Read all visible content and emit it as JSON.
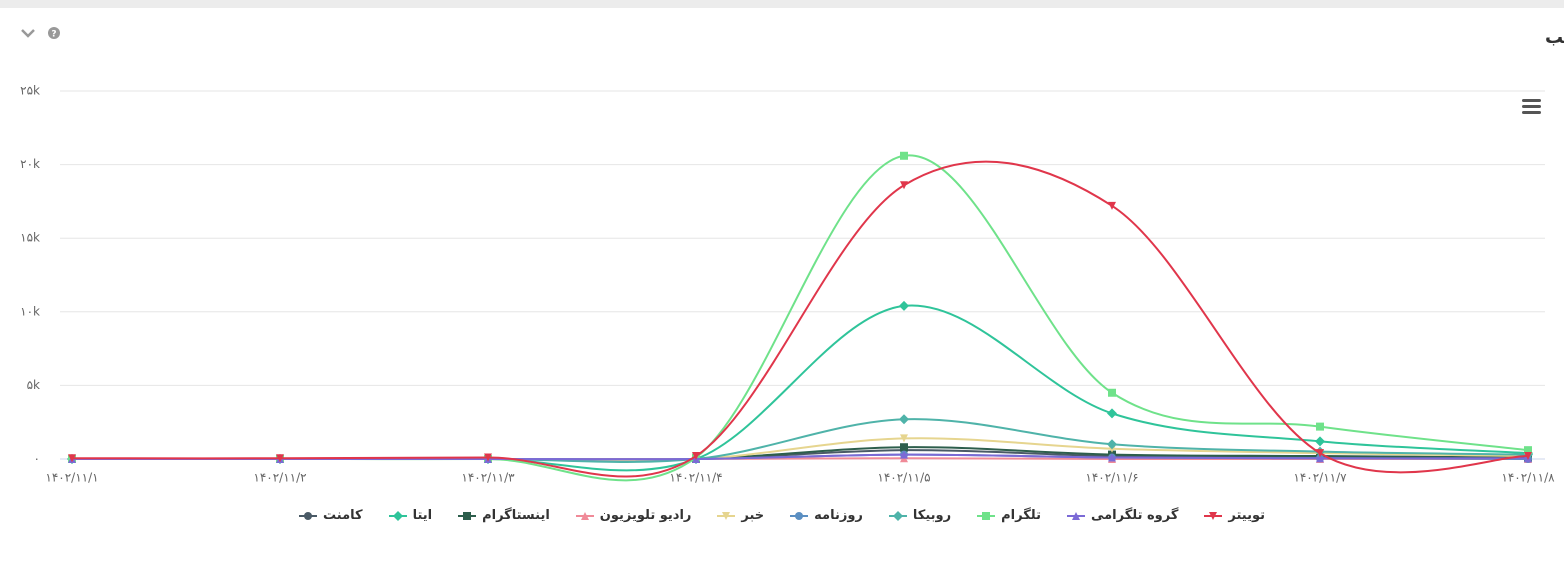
{
  "chart_data": {
    "type": "line",
    "title": "نمودار فراوانی تعداد مطالب",
    "categories": [
      "۱۴۰۲/۱۱/۱",
      "۱۴۰۲/۱۱/۲",
      "۱۴۰۲/۱۱/۳",
      "۱۴۰۲/۱۱/۴",
      "۱۴۰۲/۱۱/۵",
      "۱۴۰۲/۱۱/۶",
      "۱۴۰۲/۱۱/۷",
      "۱۴۰۲/۱۱/۸"
    ],
    "ylim": [
      0,
      25000
    ],
    "yticks": [
      {
        "value": 0,
        "label": "۰"
      },
      {
        "value": 5000,
        "label": "۵k"
      },
      {
        "value": 10000,
        "label": "۱۰k"
      },
      {
        "value": 15000,
        "label": "۱۵k"
      },
      {
        "value": 20000,
        "label": "۲۰k"
      },
      {
        "value": 25000,
        "label": "۲۵k"
      }
    ],
    "grid": true,
    "series": [
      {
        "name": "توییتر",
        "color": "#e0364b",
        "marker": "triangle-down",
        "values": [
          50,
          50,
          100,
          200,
          18600,
          17200,
          400,
          200
        ]
      },
      {
        "name": "گروه تلگرامی",
        "color": "#7b6ad6",
        "marker": "triangle",
        "values": [
          0,
          0,
          0,
          0,
          300,
          100,
          50,
          50
        ]
      },
      {
        "name": "تلگرام",
        "color": "#6fe28a",
        "marker": "square",
        "values": [
          0,
          0,
          0,
          100,
          20600,
          4500,
          2200,
          600
        ]
      },
      {
        "name": "روبیکا",
        "color": "#4fb3a9",
        "marker": "diamond",
        "values": [
          0,
          0,
          0,
          0,
          2700,
          1000,
          500,
          300
        ]
      },
      {
        "name": "روزنامه",
        "color": "#5b8fc2",
        "marker": "circle",
        "values": [
          0,
          0,
          0,
          0,
          300,
          100,
          50,
          0
        ]
      },
      {
        "name": "خبر",
        "color": "#e6d58f",
        "marker": "triangle-down",
        "values": [
          0,
          0,
          0,
          0,
          1400,
          700,
          400,
          200
        ]
      },
      {
        "name": "رادیو تلویزیون",
        "color": "#f08a98",
        "marker": "triangle",
        "values": [
          0,
          0,
          0,
          0,
          50,
          0,
          0,
          0
        ]
      },
      {
        "name": "اینستاگرام",
        "color": "#2d5e4c",
        "marker": "square",
        "values": [
          0,
          0,
          0,
          0,
          800,
          300,
          200,
          100
        ]
      },
      {
        "name": "ایتا",
        "color": "#2fc49a",
        "marker": "diamond",
        "values": [
          0,
          0,
          0,
          0,
          10400,
          3100,
          1200,
          400
        ]
      },
      {
        "name": "کامنت",
        "color": "#4a5a66",
        "marker": "circle",
        "values": [
          0,
          0,
          0,
          0,
          600,
          200,
          100,
          50
        ]
      }
    ]
  }
}
